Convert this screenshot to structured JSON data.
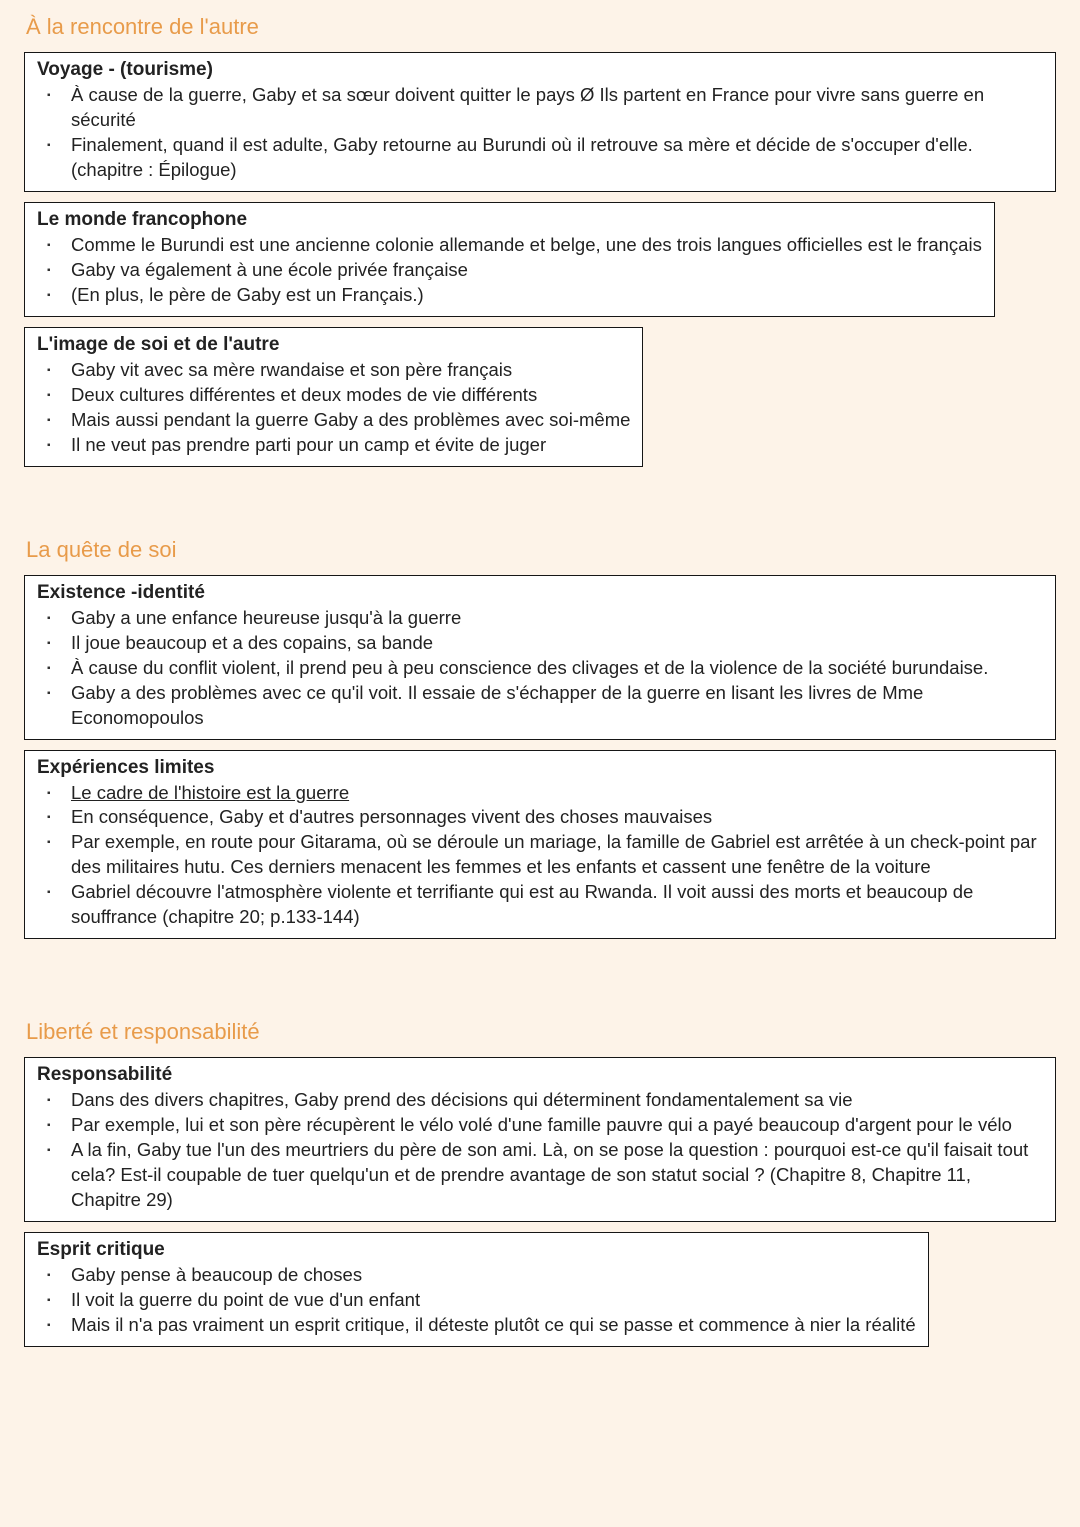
{
  "colors": {
    "page_bg": "#fdf3e8",
    "box_bg": "#ffffff",
    "box_border": "#161616",
    "heading": "#e89b4a",
    "text": "#222222"
  },
  "typography": {
    "heading_fontsize_pt": 17,
    "box_title_fontsize_pt": 14,
    "body_fontsize_pt": 14
  },
  "sections": [
    {
      "title": "À la rencontre de l'autre",
      "boxes": [
        {
          "title": "Voyage - (tourisme)",
          "fit": false,
          "items": [
            {
              "text": "À cause de la guerre, Gaby et sa sœur doivent quitter le pays Ø Ils partent en France pour vivre sans guerre en sécurité"
            },
            {
              "text": "Finalement, quand il est adulte, Gaby retourne au Burundi où il retrouve sa mère et décide de s'occuper d'elle. (chapitre : Épilogue)"
            }
          ]
        },
        {
          "title": "Le monde francophone",
          "fit": true,
          "items": [
            {
              "text": "Comme le Burundi est une ancienne colonie allemande et belge, une des trois langues officielles est le français"
            },
            {
              "text": "Gaby va également à une école privée française"
            },
            {
              "text": "(En plus, le père de Gaby est un Français.)"
            }
          ]
        },
        {
          "title": "L'image de soi et de l'autre",
          "fit": true,
          "items": [
            {
              "text": "Gaby vit avec sa mère rwandaise et son père français"
            },
            {
              "text": "Deux cultures différentes et deux modes de vie différents"
            },
            {
              "text": "Mais aussi pendant la guerre Gaby a des problèmes avec soi-même"
            },
            {
              "text": "Il ne veut pas prendre parti pour un camp et évite de juger"
            }
          ]
        }
      ]
    },
    {
      "title": "La quête de soi",
      "boxes": [
        {
          "title": "Existence -identité",
          "fit": false,
          "items": [
            {
              "text": "Gaby a une enfance heureuse jusqu'à la guerre"
            },
            {
              "text": "Il joue beaucoup et a des copains, sa bande"
            },
            {
              "text": "À cause du conflit violent, il prend peu à peu conscience des clivages et de la violence de la société burundaise."
            },
            {
              "text": "Gaby a des problèmes avec ce qu'il voit. Il essaie de s'échapper de la guerre en lisant les livres de Mme Economopoulos"
            }
          ]
        },
        {
          "title": "Expériences limites",
          "fit": false,
          "items": [
            {
              "text": "Le cadre de l'histoire est la guerre",
              "underline": true
            },
            {
              "text": "En conséquence, Gaby et d'autres personnages vivent des choses mauvaises"
            },
            {
              "text": "Par exemple, en route pour Gitarama, où se déroule un mariage, la famille de Gabriel est arrêtée à un check-point par des militaires hutu. Ces derniers menacent les femmes et les enfants et cassent une fenêtre de la voiture"
            },
            {
              "text": "Gabriel découvre l'atmosphère violente et terrifiante qui est au Rwanda. Il voit aussi des morts et beaucoup de souffrance (chapitre 20; p.133-144)"
            }
          ]
        }
      ]
    },
    {
      "title": "Liberté et responsabilité",
      "boxes": [
        {
          "title": "Responsabilité",
          "fit": false,
          "items": [
            {
              "text": "Dans des divers chapitres, Gaby prend des décisions qui déterminent fondamentalement sa vie"
            },
            {
              "text": "Par exemple, lui et son père récupèrent le vélo volé d'une famille pauvre qui a payé beaucoup d'argent pour le vélo"
            },
            {
              "text": "A la fin, Gaby tue l'un des meurtriers du père de son ami. Là, on se pose la question : pourquoi est-ce qu'il faisait tout cela? Est-il coupable de tuer quelqu'un et de prendre avantage de son statut social ? (Chapitre 8, Chapitre 11, Chapitre 29)"
            }
          ]
        },
        {
          "title": "Esprit critique",
          "fit": true,
          "items": [
            {
              "text": "Gaby pense à beaucoup de choses"
            },
            {
              "text": "Il voit la guerre du point de vue d'un enfant"
            },
            {
              "text": "Mais il n'a pas vraiment un esprit critique, il déteste plutôt ce qui se passe et commence à nier la réalité"
            }
          ]
        }
      ]
    }
  ]
}
